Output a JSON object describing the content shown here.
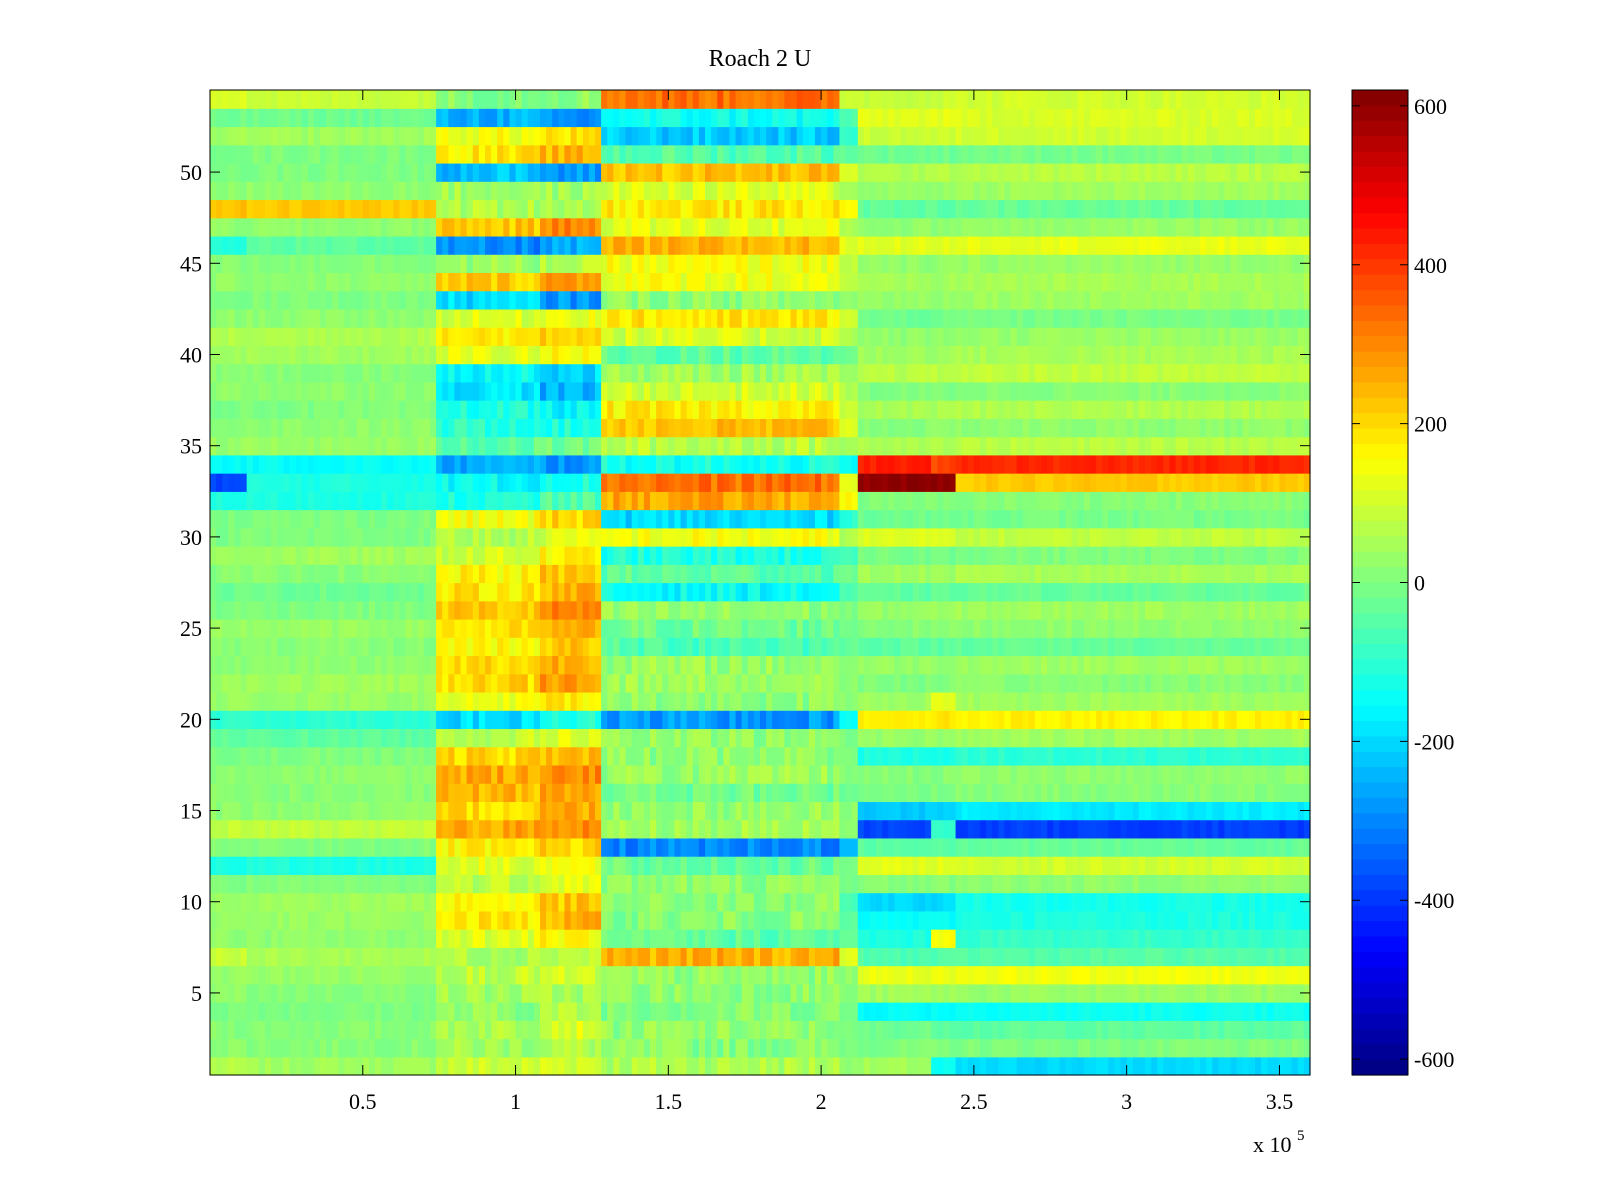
{
  "chart_data": {
    "type": "heatmap",
    "title": "Roach 2 U",
    "xlabel": "",
    "ylabel": "",
    "x_multiplier_label": "x 10",
    "x_multiplier_exponent": "5",
    "xlim": [
      0,
      360000
    ],
    "ylim": [
      0.5,
      54.5
    ],
    "x_ticks": [
      {
        "value": 50000,
        "label": "0.5"
      },
      {
        "value": 100000,
        "label": "1"
      },
      {
        "value": 150000,
        "label": "1.5"
      },
      {
        "value": 200000,
        "label": "2"
      },
      {
        "value": 250000,
        "label": "2.5"
      },
      {
        "value": 300000,
        "label": "3"
      },
      {
        "value": 350000,
        "label": "3.5"
      }
    ],
    "y_ticks": [
      {
        "value": 5,
        "label": "5"
      },
      {
        "value": 10,
        "label": "10"
      },
      {
        "value": 15,
        "label": "15"
      },
      {
        "value": 20,
        "label": "20"
      },
      {
        "value": 25,
        "label": "25"
      },
      {
        "value": 30,
        "label": "30"
      },
      {
        "value": 35,
        "label": "35"
      },
      {
        "value": 40,
        "label": "40"
      },
      {
        "value": 45,
        "label": "45"
      },
      {
        "value": 50,
        "label": "50"
      }
    ],
    "rows": 54,
    "colormap": "jet",
    "clim": [
      -620,
      620
    ],
    "colorbar": {
      "ticks": [
        {
          "value": 600,
          "label": "600"
        },
        {
          "value": 400,
          "label": "400"
        },
        {
          "value": 200,
          "label": "200"
        },
        {
          "value": 0,
          "label": "0"
        },
        {
          "value": -200,
          "label": "-200"
        },
        {
          "value": -400,
          "label": "-400"
        },
        {
          "value": -600,
          "label": "-600"
        }
      ]
    },
    "segments_note": "approximate mean values per row over x-segments (data units)",
    "segment_bounds": [
      0,
      12000,
      74000,
      108000,
      128000,
      206000,
      212000,
      236000,
      244000,
      360000
    ],
    "row_values": [
      [
        60,
        40,
        90,
        110,
        60,
        30,
        40,
        -150,
        -200,
        -200
      ],
      [
        20,
        10,
        40,
        60,
        10,
        0,
        0,
        0,
        0,
        0
      ],
      [
        10,
        10,
        60,
        120,
        20,
        -10,
        -20,
        -30,
        -40,
        -40
      ],
      [
        0,
        0,
        20,
        60,
        10,
        -10,
        -150,
        -150,
        -140,
        -140
      ],
      [
        20,
        10,
        40,
        50,
        20,
        10,
        40,
        40,
        30,
        30
      ],
      [
        30,
        30,
        80,
        90,
        20,
        20,
        130,
        130,
        140,
        140
      ],
      [
        90,
        50,
        60,
        80,
        250,
        120,
        -60,
        -60,
        -50,
        -50
      ],
      [
        20,
        20,
        120,
        160,
        -40,
        -40,
        -120,
        150,
        -90,
        -90
      ],
      [
        30,
        30,
        180,
        240,
        10,
        -50,
        -150,
        -150,
        -120,
        -120
      ],
      [
        40,
        40,
        160,
        220,
        10,
        -60,
        -200,
        -200,
        -130,
        -130
      ],
      [
        0,
        0,
        80,
        130,
        20,
        0,
        10,
        10,
        20,
        20
      ],
      [
        -120,
        -120,
        120,
        140,
        -30,
        -20,
        120,
        120,
        100,
        100
      ],
      [
        0,
        0,
        160,
        200,
        -300,
        -250,
        -40,
        -40,
        -30,
        -30
      ],
      [
        80,
        80,
        260,
        300,
        40,
        20,
        -380,
        -100,
        -390,
        -390
      ],
      [
        20,
        20,
        200,
        260,
        30,
        20,
        -220,
        -220,
        -180,
        -180
      ],
      [
        10,
        10,
        240,
        280,
        -20,
        -20,
        0,
        0,
        10,
        10
      ],
      [
        20,
        20,
        260,
        300,
        30,
        10,
        10,
        10,
        20,
        20
      ],
      [
        0,
        0,
        200,
        240,
        20,
        10,
        -120,
        -120,
        -100,
        -100
      ],
      [
        -40,
        -40,
        80,
        120,
        20,
        0,
        30,
        30,
        40,
        40
      ],
      [
        -100,
        -100,
        -200,
        -120,
        -280,
        -150,
        180,
        180,
        170,
        170
      ],
      [
        30,
        30,
        130,
        180,
        20,
        10,
        40,
        120,
        40,
        40
      ],
      [
        40,
        40,
        200,
        280,
        40,
        20,
        0,
        0,
        10,
        10
      ],
      [
        20,
        20,
        200,
        260,
        30,
        20,
        30,
        30,
        40,
        40
      ],
      [
        10,
        10,
        160,
        220,
        -60,
        -30,
        -40,
        -40,
        -30,
        -30
      ],
      [
        30,
        30,
        180,
        240,
        -20,
        -10,
        10,
        10,
        20,
        20
      ],
      [
        0,
        0,
        220,
        300,
        20,
        0,
        30,
        30,
        40,
        40
      ],
      [
        -20,
        -20,
        180,
        250,
        -150,
        -60,
        -40,
        -40,
        -30,
        -30
      ],
      [
        10,
        10,
        160,
        220,
        -40,
        -20,
        40,
        40,
        50,
        50
      ],
      [
        40,
        40,
        100,
        160,
        -120,
        -80,
        -10,
        -10,
        0,
        0
      ],
      [
        0,
        0,
        60,
        110,
        140,
        60,
        110,
        110,
        80,
        80
      ],
      [
        0,
        0,
        140,
        200,
        -200,
        -100,
        -20,
        -20,
        -10,
        -10
      ],
      [
        -120,
        -120,
        -120,
        -60,
        260,
        160,
        0,
        0,
        10,
        10
      ],
      [
        -380,
        -120,
        -150,
        -120,
        330,
        120,
        600,
        600,
        220,
        100
      ],
      [
        -150,
        -150,
        -260,
        -280,
        -130,
        -150,
        430,
        380,
        420,
        420
      ],
      [
        30,
        30,
        -40,
        -20,
        70,
        40,
        60,
        60,
        70,
        70
      ],
      [
        20,
        20,
        -100,
        -120,
        230,
        120,
        10,
        10,
        20,
        20
      ],
      [
        0,
        0,
        -120,
        -160,
        170,
        80,
        50,
        50,
        60,
        60
      ],
      [
        20,
        20,
        -180,
        -250,
        100,
        60,
        0,
        0,
        10,
        10
      ],
      [
        10,
        10,
        -150,
        -200,
        40,
        20,
        70,
        70,
        80,
        80
      ],
      [
        40,
        40,
        120,
        150,
        -40,
        -20,
        40,
        40,
        50,
        50
      ],
      [
        60,
        60,
        180,
        220,
        100,
        60,
        20,
        20,
        30,
        30
      ],
      [
        20,
        20,
        110,
        140,
        180,
        100,
        -20,
        -20,
        -10,
        -10
      ],
      [
        0,
        0,
        -200,
        -280,
        20,
        20,
        30,
        30,
        40,
        40
      ],
      [
        20,
        20,
        220,
        280,
        140,
        80,
        40,
        40,
        50,
        50
      ],
      [
        10,
        10,
        30,
        60,
        140,
        80,
        20,
        20,
        30,
        30
      ],
      [
        -120,
        -40,
        -300,
        -260,
        240,
        120,
        120,
        120,
        130,
        130
      ],
      [
        20,
        20,
        220,
        300,
        120,
        60,
        20,
        20,
        30,
        30
      ],
      [
        230,
        220,
        60,
        60,
        180,
        170,
        -40,
        -40,
        -30,
        -30
      ],
      [
        20,
        20,
        40,
        40,
        110,
        40,
        30,
        30,
        40,
        40
      ],
      [
        0,
        0,
        -230,
        -280,
        230,
        120,
        60,
        60,
        70,
        70
      ],
      [
        0,
        0,
        180,
        240,
        -50,
        -30,
        -20,
        -20,
        -10,
        -10
      ],
      [
        40,
        40,
        140,
        180,
        -220,
        -100,
        90,
        90,
        100,
        100
      ],
      [
        -20,
        -20,
        -250,
        -300,
        -140,
        -60,
        120,
        120,
        110,
        110
      ],
      [
        120,
        90,
        10,
        20,
        330,
        100,
        90,
        90,
        100,
        100
      ]
    ]
  }
}
